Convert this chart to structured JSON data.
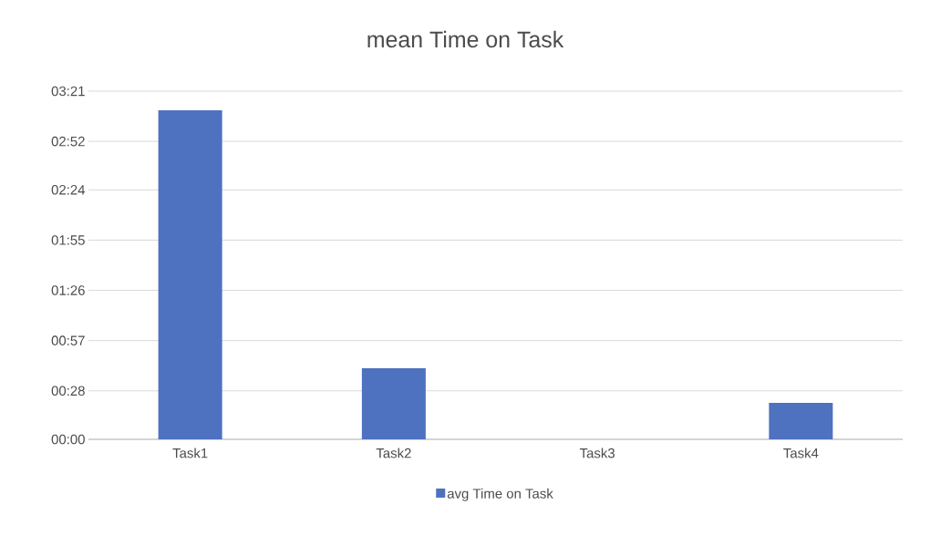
{
  "chart_data": {
    "type": "bar",
    "title": "mean Time on Task",
    "categories": [
      "Task1",
      "Task2",
      "Task3",
      "Task4"
    ],
    "series": [
      {
        "name": "avg Time on Task",
        "color": "#4e71c0",
        "values": [
          190,
          41,
          0,
          21
        ]
      }
    ],
    "ylim": [
      0,
      201
    ],
    "yticks": [
      {
        "value": 0,
        "label": "00:00"
      },
      {
        "value": 28,
        "label": "00:28"
      },
      {
        "value": 57,
        "label": "00:57"
      },
      {
        "value": 86,
        "label": "01:26"
      },
      {
        "value": 115,
        "label": "01:55"
      },
      {
        "value": 144,
        "label": "02:24"
      },
      {
        "value": 172,
        "label": "02:52"
      },
      {
        "value": 201,
        "label": "03:21"
      }
    ],
    "grid": "y",
    "legend": "bottom"
  }
}
